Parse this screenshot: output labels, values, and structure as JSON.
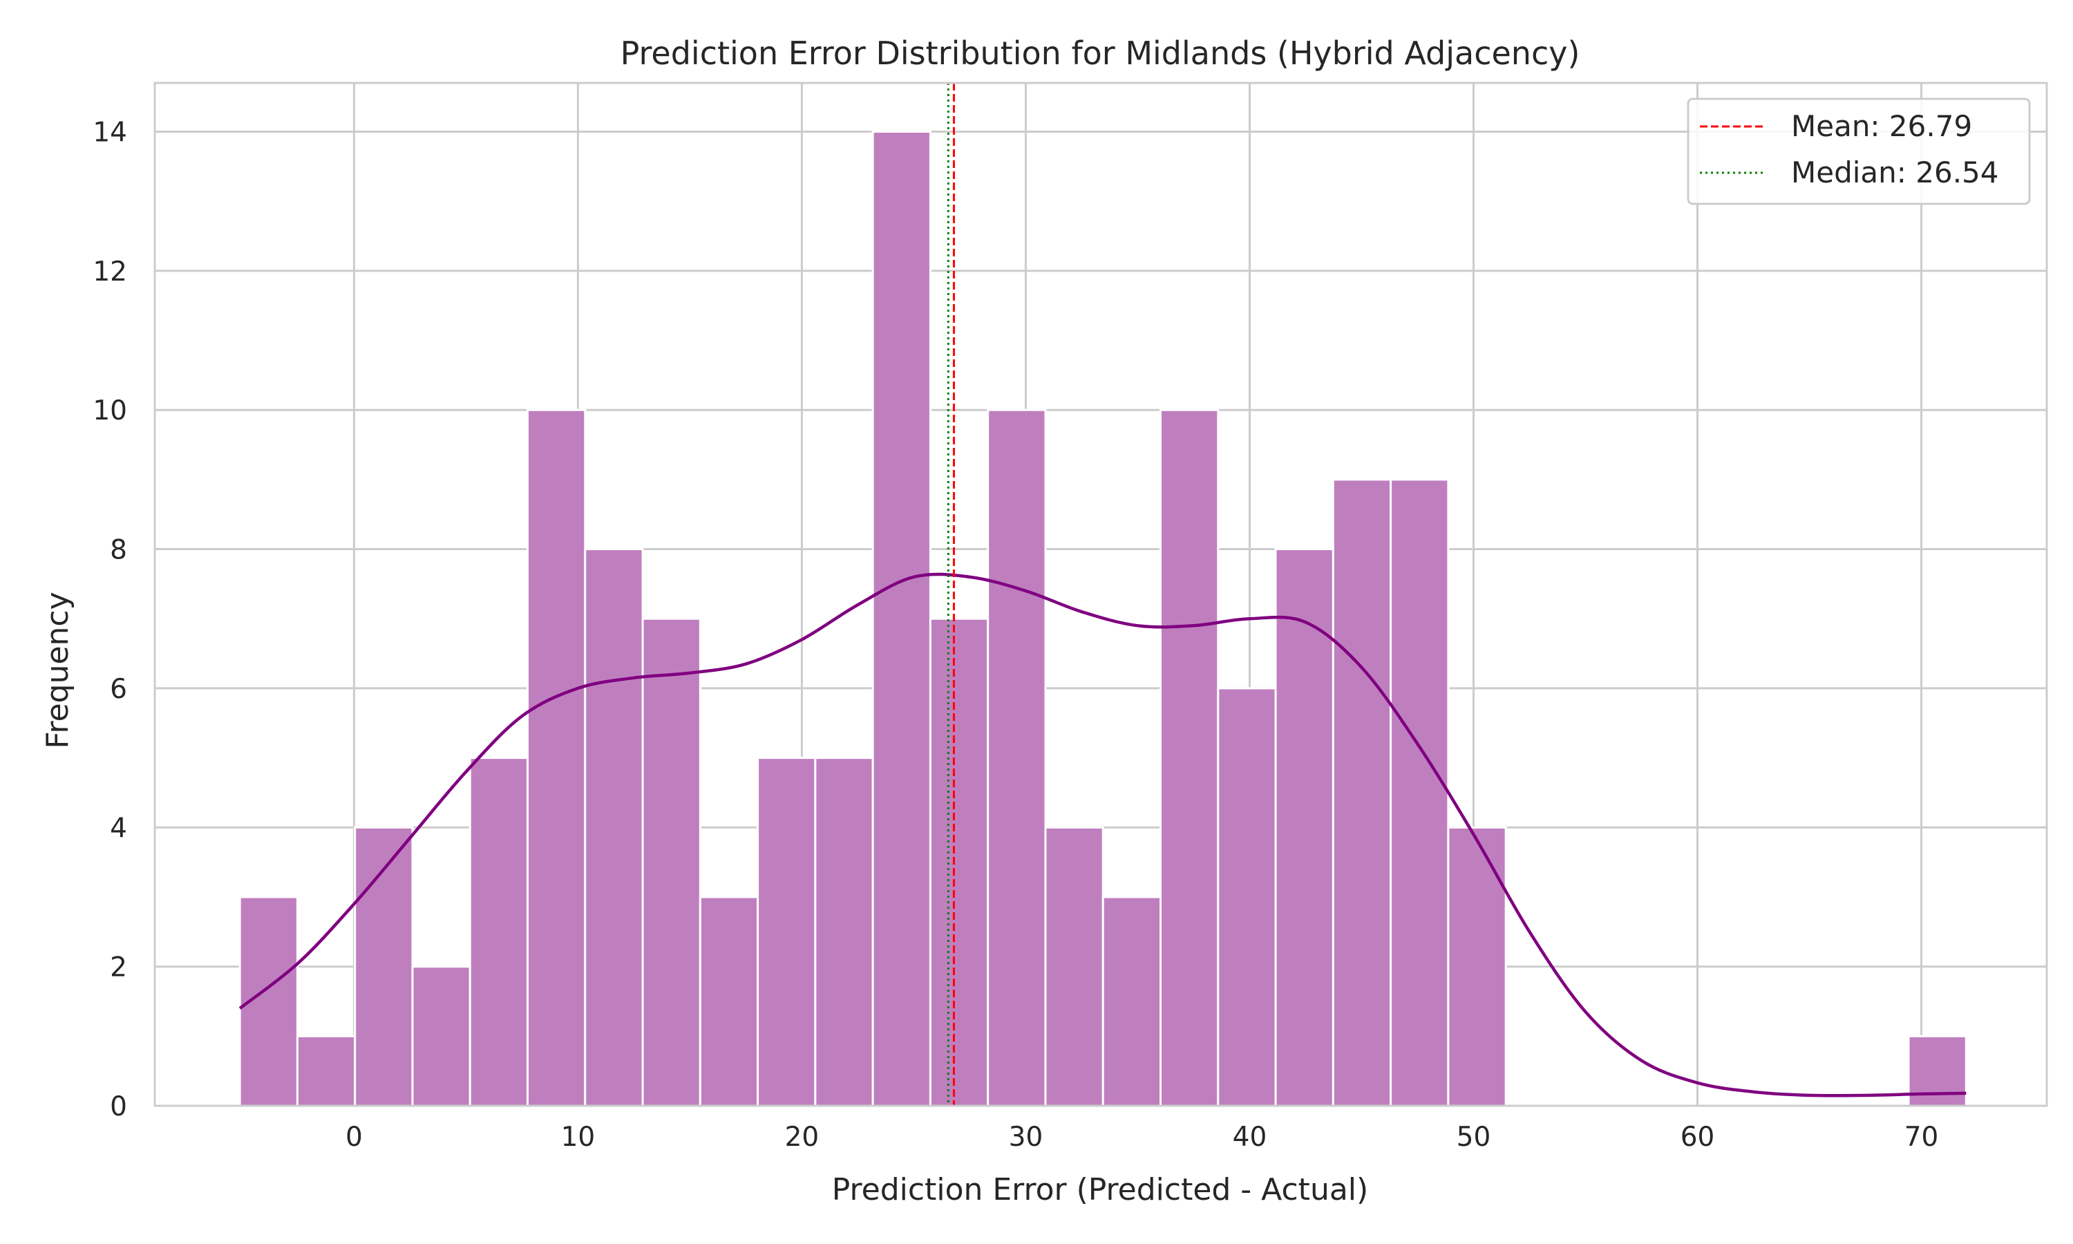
{
  "chart_data": {
    "type": "bar",
    "title": "Prediction Error Distribution for Midlands (Hybrid Adjacency)",
    "xlabel": "Prediction Error (Predicted - Actual)",
    "ylabel": "Frequency",
    "xlim": [
      -8.9,
      75.6
    ],
    "ylim": [
      0,
      14.7
    ],
    "xticks": [
      0,
      10,
      20,
      30,
      40,
      50,
      60,
      70
    ],
    "yticks": [
      0,
      2,
      4,
      6,
      8,
      10,
      12,
      14
    ],
    "grid": true,
    "legend_position": "top-right",
    "bar_color": "#bf7fbf",
    "bins": {
      "left_edges": [
        -5.1,
        -2.53,
        0.04,
        2.61,
        5.18,
        7.75,
        10.32,
        12.89,
        15.46,
        18.03,
        20.6,
        23.17,
        25.74,
        28.31,
        30.88,
        33.45,
        36.02,
        38.59,
        41.16,
        43.73,
        46.3,
        48.87,
        69.43
      ],
      "width": 2.57,
      "counts": [
        3,
        1,
        4,
        2,
        5,
        10,
        8,
        7,
        3,
        5,
        5,
        14,
        7,
        10,
        4,
        3,
        10,
        6,
        8,
        9,
        9,
        4,
        1
      ]
    },
    "kde": {
      "name": "KDE",
      "color": "#800080",
      "x": [
        -5.1,
        -2.5,
        0,
        2.5,
        5,
        7.5,
        10,
        12.5,
        15,
        17.5,
        20,
        22.5,
        25,
        27.5,
        30,
        32.5,
        35,
        37.5,
        40,
        42.5,
        45,
        47.5,
        50,
        52.5,
        55,
        57.5,
        60,
        62.5,
        65,
        67.5,
        70,
        72
      ],
      "y": [
        1.4,
        2.05,
        2.9,
        3.85,
        4.8,
        5.6,
        6.0,
        6.15,
        6.22,
        6.35,
        6.7,
        7.2,
        7.6,
        7.6,
        7.4,
        7.1,
        6.9,
        6.9,
        7.0,
        6.95,
        6.3,
        5.2,
        3.9,
        2.5,
        1.35,
        0.65,
        0.33,
        0.2,
        0.15,
        0.15,
        0.17,
        0.18
      ]
    },
    "lines": [
      {
        "name": "Mean: 26.79",
        "x": 26.79,
        "color": "#ff0000",
        "style": "dashed"
      },
      {
        "name": "Median: 26.54",
        "x": 26.54,
        "color": "#008000",
        "style": "dotted"
      }
    ]
  }
}
